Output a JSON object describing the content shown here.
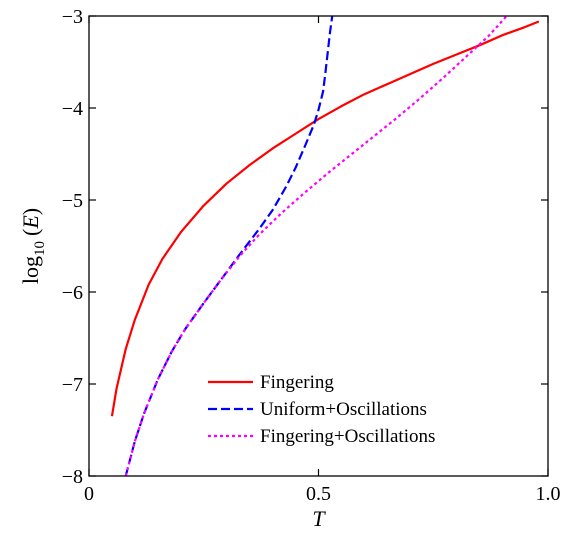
{
  "chart_data": {
    "type": "line",
    "xlabel": "T",
    "ylabel": "log10(E)",
    "ylabel_parts": {
      "prefix": "log",
      "subscript": "10",
      "arg": "E"
    },
    "xlim": [
      0,
      1
    ],
    "ylim": [
      -8,
      -3
    ],
    "xticks": [
      0,
      0.5,
      1.0
    ],
    "xtick_labels": [
      "0",
      "0.5",
      "1.0"
    ],
    "yticks": [
      -3,
      -4,
      -5,
      -6,
      -7,
      -8
    ],
    "ytick_labels": [
      "−3",
      "−4",
      "−5",
      "−6",
      "−7",
      "−8"
    ],
    "grid": false,
    "legend_position": "bottom-right",
    "series": [
      {
        "name": "Fingering",
        "color": "#ff0000",
        "dash": "solid",
        "x": [
          0.05,
          0.06,
          0.08,
          0.1,
          0.13,
          0.16,
          0.2,
          0.25,
          0.3,
          0.35,
          0.4,
          0.45,
          0.5,
          0.55,
          0.6,
          0.65,
          0.7,
          0.75,
          0.8,
          0.85,
          0.9,
          0.95,
          0.98
        ],
        "y": [
          -7.35,
          -7.05,
          -6.62,
          -6.3,
          -5.92,
          -5.64,
          -5.35,
          -5.06,
          -4.82,
          -4.62,
          -4.44,
          -4.28,
          -4.12,
          -3.98,
          -3.85,
          -3.74,
          -3.63,
          -3.52,
          -3.42,
          -3.32,
          -3.21,
          -3.12,
          -3.06
        ]
      },
      {
        "name": "Uniform+Oscillations",
        "color": "#0000ff",
        "dash": "dashed",
        "x": [
          0.08,
          0.1,
          0.12,
          0.15,
          0.18,
          0.21,
          0.25,
          0.29,
          0.33,
          0.37,
          0.4,
          0.43,
          0.45,
          0.47,
          0.49,
          0.5,
          0.51,
          0.515,
          0.52,
          0.525,
          0.53
        ],
        "y": [
          -8.0,
          -7.62,
          -7.32,
          -6.95,
          -6.65,
          -6.4,
          -6.12,
          -5.85,
          -5.58,
          -5.32,
          -5.11,
          -4.85,
          -4.65,
          -4.42,
          -4.18,
          -4.02,
          -3.82,
          -3.62,
          -3.4,
          -3.18,
          -3.0
        ]
      },
      {
        "name": "Fingering+Oscillations",
        "color": "#ff00ff",
        "dash": "dotted",
        "x": [
          0.08,
          0.1,
          0.12,
          0.15,
          0.18,
          0.21,
          0.25,
          0.29,
          0.33,
          0.37,
          0.42,
          0.47,
          0.52,
          0.57,
          0.62,
          0.67,
          0.72,
          0.77,
          0.82,
          0.87,
          0.91
        ],
        "y": [
          -8.0,
          -7.62,
          -7.32,
          -6.95,
          -6.65,
          -6.4,
          -6.12,
          -5.85,
          -5.6,
          -5.38,
          -5.14,
          -4.92,
          -4.71,
          -4.51,
          -4.31,
          -4.11,
          -3.9,
          -3.68,
          -3.45,
          -3.22,
          -3.0
        ]
      }
    ]
  }
}
